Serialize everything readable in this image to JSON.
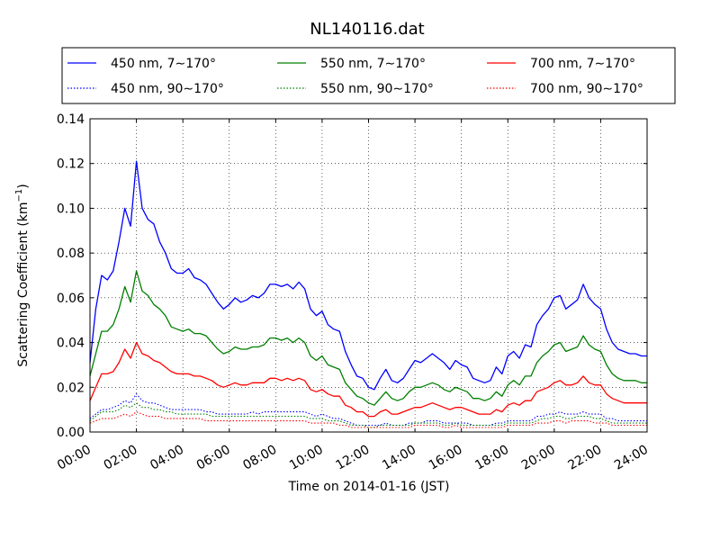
{
  "chart_data": {
    "type": "line",
    "title": "NL140116.dat",
    "xlabel": "Time on 2014-01-16 (JST)",
    "ylabel_main": "Scattering Coefficient (km",
    "ylabel_sup": "−1",
    "ylabel_close": ")",
    "xlim_hours": [
      0,
      24
    ],
    "ylim": [
      0,
      0.14
    ],
    "grid": true,
    "legend_position": "top, above plot",
    "xticks": [
      {
        "hour": 0,
        "label": "00:00"
      },
      {
        "hour": 2,
        "label": "02:00"
      },
      {
        "hour": 4,
        "label": "04:00"
      },
      {
        "hour": 6,
        "label": "06:00"
      },
      {
        "hour": 8,
        "label": "08:00"
      },
      {
        "hour": 10,
        "label": "10:00"
      },
      {
        "hour": 12,
        "label": "12:00"
      },
      {
        "hour": 14,
        "label": "14:00"
      },
      {
        "hour": 16,
        "label": "16:00"
      },
      {
        "hour": 18,
        "label": "18:00"
      },
      {
        "hour": 20,
        "label": "20:00"
      },
      {
        "hour": 22,
        "label": "22:00"
      },
      {
        "hour": 24,
        "label": "24:00"
      }
    ],
    "yticks": [
      {
        "value": 0.0,
        "label": "0.00"
      },
      {
        "value": 0.02,
        "label": "0.02"
      },
      {
        "value": 0.04,
        "label": "0.04"
      },
      {
        "value": 0.06,
        "label": "0.06"
      },
      {
        "value": 0.08,
        "label": "0.08"
      },
      {
        "value": 0.1,
        "label": "0.10"
      },
      {
        "value": 0.12,
        "label": "0.12"
      },
      {
        "value": 0.14,
        "label": "0.14"
      }
    ],
    "x_hours": [
      0,
      0.25,
      0.5,
      0.75,
      1,
      1.25,
      1.5,
      1.75,
      2,
      2.25,
      2.5,
      2.75,
      3,
      3.25,
      3.5,
      3.75,
      4,
      4.25,
      4.5,
      4.75,
      5,
      5.25,
      5.5,
      5.75,
      6,
      6.25,
      6.5,
      6.75,
      7,
      7.25,
      7.5,
      7.75,
      8,
      8.25,
      8.5,
      8.75,
      9,
      9.25,
      9.5,
      9.75,
      10,
      10.25,
      10.5,
      10.75,
      11,
      11.25,
      11.5,
      11.75,
      12,
      12.25,
      12.5,
      12.75,
      13,
      13.25,
      13.5,
      13.75,
      14,
      14.25,
      14.5,
      14.75,
      15,
      15.25,
      15.5,
      15.75,
      16,
      16.25,
      16.5,
      16.75,
      17,
      17.25,
      17.5,
      17.75,
      18,
      18.25,
      18.5,
      18.75,
      19,
      19.25,
      19.5,
      19.75,
      20,
      20.25,
      20.5,
      20.75,
      21,
      21.25,
      21.5,
      21.75,
      22,
      22.25,
      22.5,
      22.75,
      23,
      23.25,
      23.5,
      23.75,
      24
    ],
    "series": [
      {
        "name": "450 nm, 7∼170°",
        "color": "#0000ff",
        "style": "solid",
        "values": [
          0.031,
          0.055,
          0.07,
          0.068,
          0.072,
          0.085,
          0.1,
          0.092,
          0.121,
          0.1,
          0.095,
          0.093,
          0.085,
          0.08,
          0.073,
          0.071,
          0.071,
          0.073,
          0.069,
          0.068,
          0.066,
          0.062,
          0.058,
          0.055,
          0.057,
          0.06,
          0.058,
          0.059,
          0.061,
          0.06,
          0.062,
          0.066,
          0.066,
          0.065,
          0.066,
          0.064,
          0.067,
          0.064,
          0.055,
          0.052,
          0.054,
          0.048,
          0.046,
          0.045,
          0.036,
          0.03,
          0.025,
          0.024,
          0.02,
          0.019,
          0.024,
          0.028,
          0.023,
          0.022,
          0.024,
          0.028,
          0.032,
          0.031,
          0.033,
          0.035,
          0.033,
          0.031,
          0.028,
          0.032,
          0.03,
          0.029,
          0.024,
          0.023,
          0.022,
          0.023,
          0.029,
          0.026,
          0.034,
          0.036,
          0.033,
          0.039,
          0.038,
          0.048,
          0.052,
          0.055,
          0.06,
          0.061,
          0.055,
          0.057,
          0.059,
          0.066,
          0.06,
          0.057,
          0.055,
          0.046,
          0.04,
          0.037,
          0.036,
          0.035,
          0.035,
          0.034,
          0.034
        ]
      },
      {
        "name": "550 nm, 7∼170°",
        "color": "#008000",
        "style": "solid",
        "values": [
          0.025,
          0.035,
          0.045,
          0.045,
          0.048,
          0.055,
          0.065,
          0.058,
          0.072,
          0.063,
          0.061,
          0.057,
          0.055,
          0.052,
          0.047,
          0.046,
          0.045,
          0.046,
          0.044,
          0.044,
          0.043,
          0.04,
          0.037,
          0.035,
          0.036,
          0.038,
          0.037,
          0.037,
          0.038,
          0.038,
          0.039,
          0.042,
          0.042,
          0.041,
          0.042,
          0.04,
          0.042,
          0.04,
          0.034,
          0.032,
          0.034,
          0.03,
          0.029,
          0.028,
          0.022,
          0.019,
          0.016,
          0.015,
          0.013,
          0.012,
          0.015,
          0.018,
          0.015,
          0.014,
          0.015,
          0.018,
          0.02,
          0.02,
          0.021,
          0.022,
          0.021,
          0.019,
          0.018,
          0.02,
          0.019,
          0.018,
          0.015,
          0.015,
          0.014,
          0.015,
          0.018,
          0.016,
          0.021,
          0.023,
          0.021,
          0.025,
          0.025,
          0.031,
          0.034,
          0.036,
          0.039,
          0.04,
          0.036,
          0.037,
          0.038,
          0.043,
          0.039,
          0.037,
          0.036,
          0.03,
          0.026,
          0.024,
          0.023,
          0.023,
          0.023,
          0.022,
          0.022
        ]
      },
      {
        "name": "700 nm, 7∼170°",
        "color": "#ff0000",
        "style": "solid",
        "values": [
          0.014,
          0.02,
          0.026,
          0.026,
          0.027,
          0.031,
          0.037,
          0.033,
          0.04,
          0.035,
          0.034,
          0.032,
          0.031,
          0.029,
          0.027,
          0.026,
          0.026,
          0.026,
          0.025,
          0.025,
          0.024,
          0.023,
          0.021,
          0.02,
          0.021,
          0.022,
          0.021,
          0.021,
          0.022,
          0.022,
          0.022,
          0.024,
          0.024,
          0.023,
          0.024,
          0.023,
          0.024,
          0.023,
          0.019,
          0.018,
          0.019,
          0.017,
          0.016,
          0.016,
          0.012,
          0.011,
          0.009,
          0.009,
          0.007,
          0.007,
          0.009,
          0.01,
          0.008,
          0.008,
          0.009,
          0.01,
          0.011,
          0.011,
          0.012,
          0.013,
          0.012,
          0.011,
          0.01,
          0.011,
          0.011,
          0.01,
          0.009,
          0.008,
          0.008,
          0.008,
          0.01,
          0.009,
          0.012,
          0.013,
          0.012,
          0.014,
          0.014,
          0.018,
          0.019,
          0.02,
          0.022,
          0.023,
          0.021,
          0.021,
          0.022,
          0.025,
          0.022,
          0.021,
          0.021,
          0.017,
          0.015,
          0.014,
          0.013,
          0.013,
          0.013,
          0.013,
          0.013
        ]
      },
      {
        "name": "450 nm, 90∼170°",
        "color": "#0000ff",
        "style": "dotted",
        "values": [
          0.006,
          0.008,
          0.01,
          0.01,
          0.011,
          0.012,
          0.014,
          0.013,
          0.017,
          0.014,
          0.013,
          0.013,
          0.012,
          0.011,
          0.01,
          0.01,
          0.01,
          0.01,
          0.01,
          0.01,
          0.009,
          0.009,
          0.008,
          0.008,
          0.008,
          0.008,
          0.008,
          0.008,
          0.009,
          0.008,
          0.009,
          0.009,
          0.009,
          0.009,
          0.009,
          0.009,
          0.009,
          0.009,
          0.008,
          0.007,
          0.008,
          0.007,
          0.006,
          0.006,
          0.005,
          0.004,
          0.003,
          0.003,
          0.003,
          0.003,
          0.003,
          0.004,
          0.003,
          0.003,
          0.003,
          0.004,
          0.004,
          0.004,
          0.005,
          0.005,
          0.005,
          0.004,
          0.004,
          0.004,
          0.004,
          0.004,
          0.003,
          0.003,
          0.003,
          0.003,
          0.004,
          0.004,
          0.005,
          0.005,
          0.005,
          0.005,
          0.005,
          0.007,
          0.007,
          0.008,
          0.008,
          0.009,
          0.008,
          0.008,
          0.008,
          0.009,
          0.008,
          0.008,
          0.008,
          0.006,
          0.006,
          0.005,
          0.005,
          0.005,
          0.005,
          0.005,
          0.005
        ]
      },
      {
        "name": "550 nm, 90∼170°",
        "color": "#008000",
        "style": "dotted",
        "values": [
          0.005,
          0.007,
          0.009,
          0.009,
          0.009,
          0.01,
          0.012,
          0.011,
          0.013,
          0.011,
          0.011,
          0.01,
          0.01,
          0.009,
          0.009,
          0.008,
          0.008,
          0.008,
          0.008,
          0.008,
          0.008,
          0.007,
          0.007,
          0.007,
          0.007,
          0.007,
          0.007,
          0.007,
          0.007,
          0.007,
          0.007,
          0.007,
          0.007,
          0.007,
          0.007,
          0.007,
          0.007,
          0.007,
          0.006,
          0.006,
          0.006,
          0.005,
          0.005,
          0.005,
          0.004,
          0.003,
          0.003,
          0.003,
          0.002,
          0.002,
          0.003,
          0.003,
          0.003,
          0.003,
          0.003,
          0.003,
          0.004,
          0.004,
          0.004,
          0.004,
          0.004,
          0.003,
          0.003,
          0.004,
          0.003,
          0.003,
          0.003,
          0.003,
          0.003,
          0.003,
          0.003,
          0.003,
          0.004,
          0.004,
          0.004,
          0.004,
          0.004,
          0.005,
          0.006,
          0.006,
          0.007,
          0.007,
          0.006,
          0.006,
          0.007,
          0.007,
          0.007,
          0.006,
          0.006,
          0.005,
          0.004,
          0.004,
          0.004,
          0.004,
          0.004,
          0.004,
          0.004
        ]
      },
      {
        "name": "700 nm, 90∼170°",
        "color": "#ff0000",
        "style": "dotted",
        "values": [
          0.004,
          0.005,
          0.006,
          0.006,
          0.006,
          0.007,
          0.008,
          0.007,
          0.009,
          0.008,
          0.007,
          0.007,
          0.007,
          0.006,
          0.006,
          0.006,
          0.006,
          0.006,
          0.006,
          0.006,
          0.005,
          0.005,
          0.005,
          0.005,
          0.005,
          0.005,
          0.005,
          0.005,
          0.005,
          0.005,
          0.005,
          0.005,
          0.005,
          0.005,
          0.005,
          0.005,
          0.005,
          0.005,
          0.004,
          0.004,
          0.004,
          0.004,
          0.004,
          0.003,
          0.003,
          0.002,
          0.002,
          0.002,
          0.002,
          0.002,
          0.002,
          0.002,
          0.002,
          0.002,
          0.002,
          0.002,
          0.003,
          0.003,
          0.003,
          0.003,
          0.003,
          0.002,
          0.002,
          0.003,
          0.002,
          0.002,
          0.002,
          0.002,
          0.002,
          0.002,
          0.002,
          0.002,
          0.003,
          0.003,
          0.003,
          0.003,
          0.003,
          0.004,
          0.004,
          0.004,
          0.005,
          0.005,
          0.004,
          0.005,
          0.005,
          0.005,
          0.005,
          0.004,
          0.004,
          0.004,
          0.003,
          0.003,
          0.003,
          0.003,
          0.003,
          0.003,
          0.003
        ]
      }
    ],
    "legend_order": [
      0,
      1,
      2,
      3,
      4,
      5
    ]
  }
}
